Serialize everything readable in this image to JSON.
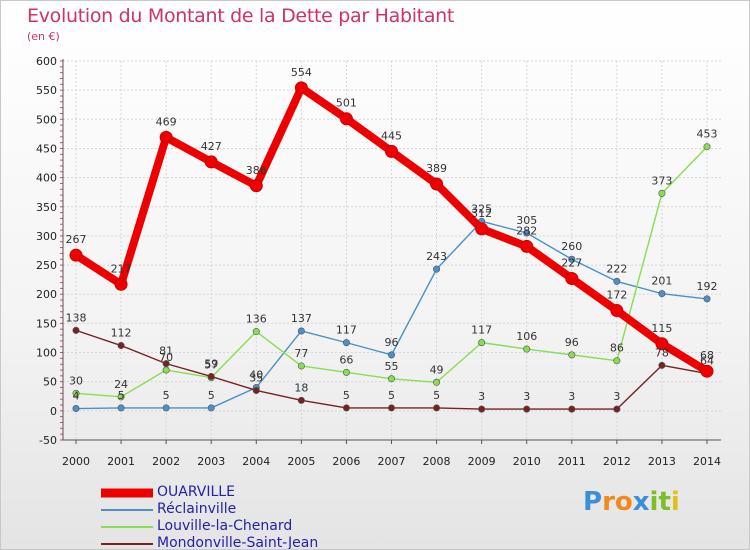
{
  "title": "Evolution du Montant de la Dette par Habitant",
  "unit": "(en €)",
  "logo": {
    "letters": [
      "P",
      "r",
      "o",
      "x",
      "i",
      "t",
      "i"
    ],
    "colors": [
      "#3a8fd8",
      "#f08a1c",
      "#f08a1c",
      "#3a8fd8",
      "#7cbf2a",
      "#7cbf2a",
      "#e0c020"
    ]
  },
  "chart_data": {
    "type": "line",
    "title": "Evolution du Montant de la Dette par Habitant",
    "ylabel": "(en €)",
    "xlabel": "",
    "x": [
      "2000",
      "2001",
      "2002",
      "2003",
      "2004",
      "2005",
      "2006",
      "2007",
      "2008",
      "2009",
      "2010",
      "2011",
      "2012",
      "2013",
      "2014"
    ],
    "y_ticks": [
      "-50",
      "0",
      "50",
      "100",
      "150",
      "200",
      "250",
      "300",
      "350",
      "400",
      "450",
      "500",
      "550",
      "600"
    ],
    "ylim": [
      -50,
      600
    ],
    "grid": true,
    "legend_position": "bottom-left",
    "series": [
      {
        "name": "OUARVILLE",
        "color": "#ee0000",
        "values": [
          267,
          217,
          469,
          427,
          386,
          554,
          501,
          445,
          389,
          312,
          282,
          227,
          172,
          115,
          68
        ],
        "labels": [
          "267",
          "217",
          "469",
          "427",
          "386",
          "554",
          "501",
          "445",
          "389",
          "312",
          "282",
          "227",
          "172",
          "115",
          "68"
        ]
      },
      {
        "name": "Réclainville",
        "color": "#4a90cc",
        "values": [
          4,
          5,
          5,
          5,
          40,
          137,
          117,
          96,
          243,
          325,
          305,
          260,
          222,
          201,
          192
        ],
        "labels": [
          "4",
          "5",
          "5",
          "5",
          "40",
          "137",
          "117",
          "96",
          "243",
          "325",
          "305",
          "260",
          "222",
          "201",
          "192"
        ]
      },
      {
        "name": "Louville-la-Chenard",
        "color": "#88dd55",
        "values": [
          30,
          24,
          70,
          57,
          136,
          77,
          66,
          55,
          49,
          117,
          106,
          96,
          86,
          373,
          453
        ],
        "labels": [
          "30",
          "24",
          "70",
          "57",
          "136",
          "77",
          "66",
          "55",
          "49",
          "117",
          "106",
          "96",
          "86",
          "373",
          "453"
        ]
      },
      {
        "name": "Mondonville-Saint-Jean",
        "color": "#772222",
        "values": [
          138,
          112,
          81,
          59,
          35,
          18,
          5,
          5,
          5,
          3,
          3,
          3,
          3,
          78,
          64
        ],
        "labels": [
          "138",
          "112",
          "81",
          "59",
          "35",
          "18",
          "5",
          "5",
          "5",
          "3",
          "3",
          "3",
          "3",
          "78",
          "64"
        ]
      }
    ]
  }
}
